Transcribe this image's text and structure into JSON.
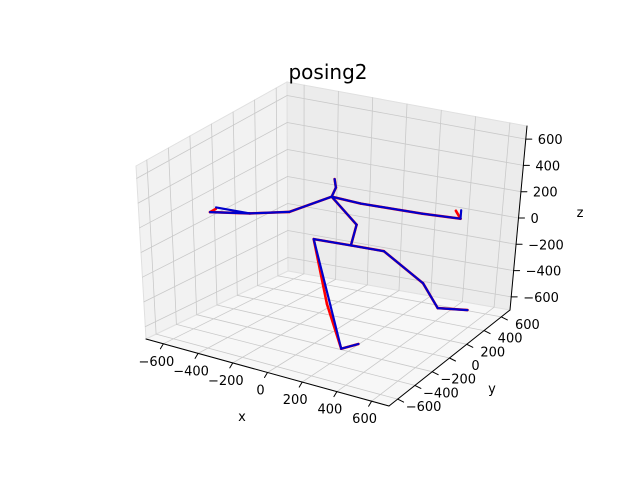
{
  "chart_data": {
    "type": "3d-line",
    "title": "posing2",
    "xlabel": "x",
    "ylabel": "y",
    "zlabel": "z",
    "x_ticks": [
      "−600",
      "−400",
      "−200",
      "0",
      "200",
      "400",
      "600"
    ],
    "y_ticks": [
      "−600",
      "−400",
      "−200",
      "0",
      "200",
      "400",
      "600"
    ],
    "z_ticks": [
      "−600",
      "−400",
      "−200",
      "0",
      "200",
      "400",
      "600"
    ],
    "xlim": [
      -700,
      700
    ],
    "ylim": [
      -700,
      700
    ],
    "zlim": [
      -700,
      700
    ],
    "grid": true,
    "series": [
      {
        "color": "#ff0000",
        "segments": [
          [
            [
              -10,
              20,
              430
            ],
            [
              10,
              0,
              380
            ]
          ],
          [
            [
              10,
              0,
              380
            ],
            [
              -20,
              10,
              300
            ]
          ],
          [
            [
              -20,
              10,
              300
            ],
            [
              -200,
              -100,
              190
            ]
          ],
          [
            [
              -200,
              -100,
              190
            ],
            [
              -400,
              -150,
              150
            ]
          ],
          [
            [
              -400,
              -150,
              150
            ],
            [
              -600,
              -200,
              130
            ]
          ],
          [
            [
              -600,
              -200,
              130
            ],
            [
              -560,
              -210,
              170
            ]
          ],
          [
            [
              -20,
              10,
              300
            ],
            [
              120,
              60,
              260
            ]
          ],
          [
            [
              120,
              60,
              260
            ],
            [
              400,
              200,
              190
            ]
          ],
          [
            [
              400,
              200,
              190
            ],
            [
              580,
              280,
              160
            ]
          ],
          [
            [
              580,
              280,
              160
            ],
            [
              540,
              300,
              200
            ]
          ],
          [
            [
              -20,
              10,
              300
            ],
            [
              120,
              20,
              120
            ]
          ],
          [
            [
              120,
              20,
              120
            ],
            [
              100,
              0,
              -30
            ]
          ],
          [
            [
              100,
              0,
              -30
            ],
            [
              -60,
              -100,
              20
            ]
          ],
          [
            [
              -60,
              -100,
              20
            ],
            [
              40,
              -140,
              -420
            ]
          ],
          [
            [
              40,
              -140,
              -420
            ],
            [
              170,
              -220,
              -680
            ]
          ],
          [
            [
              170,
              -220,
              -680
            ],
            [
              250,
              -180,
              -640
            ]
          ],
          [
            [
              100,
              0,
              -30
            ],
            [
              260,
              60,
              -60
            ]
          ],
          [
            [
              260,
              60,
              -60
            ],
            [
              420,
              200,
              -320
            ]
          ],
          [
            [
              420,
              200,
              -320
            ],
            [
              420,
              380,
              -590
            ]
          ],
          [
            [
              420,
              380,
              -590
            ],
            [
              560,
              460,
              -610
            ]
          ]
        ]
      },
      {
        "color": "#0000cc",
        "segments": [
          [
            [
              -10,
              20,
              430
            ],
            [
              10,
              0,
              380
            ]
          ],
          [
            [
              10,
              0,
              380
            ],
            [
              -20,
              10,
              300
            ]
          ],
          [
            [
              -20,
              10,
              300
            ],
            [
              -200,
              -100,
              190
            ]
          ],
          [
            [
              -200,
              -100,
              190
            ],
            [
              -400,
              -150,
              150
            ]
          ],
          [
            [
              -400,
              -150,
              150
            ],
            [
              -600,
              -200,
              130
            ]
          ],
          [
            [
              -400,
              -150,
              150
            ],
            [
              -570,
              -190,
              170
            ]
          ],
          [
            [
              -20,
              10,
              300
            ],
            [
              120,
              60,
              260
            ]
          ],
          [
            [
              120,
              60,
              260
            ],
            [
              400,
              200,
              190
            ]
          ],
          [
            [
              400,
              200,
              190
            ],
            [
              580,
              280,
              160
            ]
          ],
          [
            [
              580,
              280,
              160
            ],
            [
              560,
              320,
              200
            ]
          ],
          [
            [
              -20,
              10,
              300
            ],
            [
              120,
              20,
              120
            ]
          ],
          [
            [
              120,
              20,
              120
            ],
            [
              100,
              0,
              -30
            ]
          ],
          [
            [
              100,
              0,
              -30
            ],
            [
              -60,
              -100,
              20
            ]
          ],
          [
            [
              -60,
              -100,
              20
            ],
            [
              60,
              -140,
              -420
            ]
          ],
          [
            [
              60,
              -140,
              -420
            ],
            [
              170,
              -220,
              -680
            ]
          ],
          [
            [
              170,
              -220,
              -680
            ],
            [
              250,
              -180,
              -640
            ]
          ],
          [
            [
              100,
              0,
              -30
            ],
            [
              260,
              60,
              -60
            ]
          ],
          [
            [
              260,
              60,
              -60
            ],
            [
              420,
              200,
              -320
            ]
          ],
          [
            [
              420,
              200,
              -320
            ],
            [
              420,
              380,
              -590
            ]
          ],
          [
            [
              420,
              380,
              -590
            ],
            [
              560,
              460,
              -610
            ]
          ]
        ]
      }
    ]
  }
}
